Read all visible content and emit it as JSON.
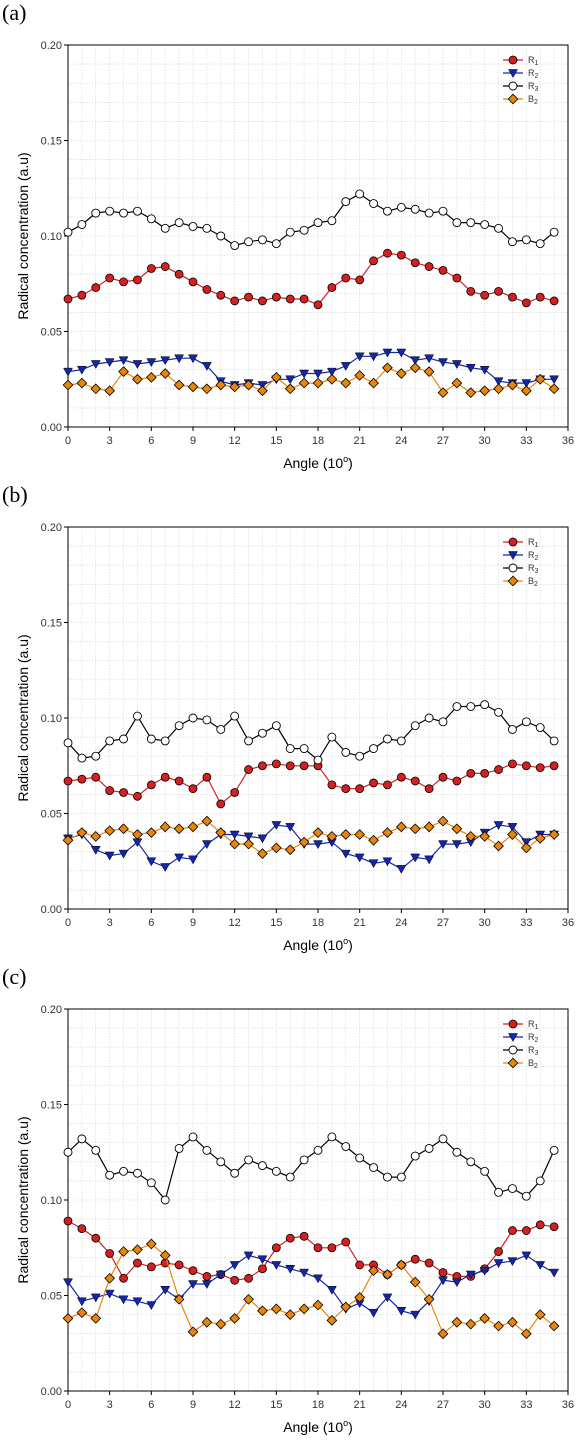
{
  "panels": [
    {
      "label": "(a)"
    },
    {
      "label": "(b)"
    },
    {
      "label": "(c)"
    }
  ],
  "chart_data": [
    {
      "type": "line",
      "xlabel": "Angle (10",
      "xlabel_sup": "o",
      "xlabel_suffix": ")",
      "ylabel": "Radical concentration (a.u)",
      "xlim": [
        0,
        36
      ],
      "ylim": [
        0,
        0.2
      ],
      "xticks": [
        0,
        3,
        6,
        9,
        12,
        15,
        18,
        21,
        24,
        27,
        30,
        33,
        36
      ],
      "yticks": [
        0.0,
        0.05,
        0.1,
        0.15,
        0.2
      ],
      "ytick_labels": [
        "0.00",
        "0.05",
        "0.10",
        "0.15",
        "0.20"
      ],
      "grid": true,
      "legend_position": "top-right",
      "x": [
        0,
        1,
        2,
        3,
        4,
        5,
        6,
        7,
        8,
        9,
        10,
        11,
        12,
        13,
        14,
        15,
        16,
        17,
        18,
        19,
        20,
        21,
        22,
        23,
        24,
        25,
        26,
        27,
        28,
        29,
        30,
        31,
        32,
        33,
        34,
        35
      ],
      "series": [
        {
          "name": "R",
          "sub": "1",
          "color": "#d42020",
          "marker": "circle",
          "values": [
            0.067,
            0.069,
            0.073,
            0.078,
            0.076,
            0.077,
            0.083,
            0.084,
            0.08,
            0.076,
            0.072,
            0.069,
            0.066,
            0.068,
            0.066,
            0.068,
            0.067,
            0.067,
            0.064,
            0.073,
            0.078,
            0.077,
            0.087,
            0.091,
            0.09,
            0.086,
            0.084,
            0.082,
            0.078,
            0.071,
            0.069,
            0.071,
            0.068,
            0.065,
            0.068,
            0.066
          ]
        },
        {
          "name": "R",
          "sub": "2",
          "color": "#1426a8",
          "marker": "triangle-down",
          "values": [
            0.029,
            0.03,
            0.033,
            0.034,
            0.035,
            0.033,
            0.034,
            0.035,
            0.036,
            0.036,
            0.032,
            0.024,
            0.022,
            0.023,
            0.022,
            0.025,
            0.025,
            0.028,
            0.028,
            0.029,
            0.032,
            0.037,
            0.037,
            0.039,
            0.039,
            0.035,
            0.036,
            0.034,
            0.033,
            0.031,
            0.03,
            0.024,
            0.023,
            0.023,
            0.025,
            0.025
          ]
        },
        {
          "name": "R",
          "sub": "3",
          "color": "#000000",
          "marker": "circle-open",
          "values": [
            0.102,
            0.106,
            0.112,
            0.113,
            0.112,
            0.113,
            0.109,
            0.104,
            0.107,
            0.105,
            0.104,
            0.1,
            0.095,
            0.097,
            0.098,
            0.096,
            0.102,
            0.103,
            0.107,
            0.108,
            0.118,
            0.122,
            0.117,
            0.113,
            0.115,
            0.114,
            0.112,
            0.113,
            0.107,
            0.107,
            0.106,
            0.104,
            0.097,
            0.098,
            0.096,
            0.102
          ]
        },
        {
          "name": "B",
          "sub": "2",
          "color": "#e8850c",
          "marker": "diamond",
          "values": [
            0.022,
            0.023,
            0.02,
            0.019,
            0.029,
            0.025,
            0.026,
            0.028,
            0.022,
            0.021,
            0.02,
            0.022,
            0.021,
            0.022,
            0.019,
            0.026,
            0.02,
            0.023,
            0.023,
            0.025,
            0.023,
            0.027,
            0.023,
            0.031,
            0.028,
            0.031,
            0.029,
            0.018,
            0.023,
            0.018,
            0.019,
            0.02,
            0.022,
            0.019,
            0.025,
            0.02
          ]
        }
      ]
    },
    {
      "type": "line",
      "xlabel": "Angle (10",
      "xlabel_sup": "o",
      "xlabel_suffix": ")",
      "ylabel": "Radical concentration (a.u)",
      "xlim": [
        0,
        36
      ],
      "ylim": [
        0,
        0.2
      ],
      "xticks": [
        0,
        3,
        6,
        9,
        12,
        15,
        18,
        21,
        24,
        27,
        30,
        33,
        36
      ],
      "yticks": [
        0.0,
        0.05,
        0.1,
        0.15,
        0.2
      ],
      "ytick_labels": [
        "0.00",
        "0.05",
        "0.10",
        "0.15",
        "0.20"
      ],
      "grid": true,
      "legend_position": "top-right",
      "x": [
        0,
        1,
        2,
        3,
        4,
        5,
        6,
        7,
        8,
        9,
        10,
        11,
        12,
        13,
        14,
        15,
        16,
        17,
        18,
        19,
        20,
        21,
        22,
        23,
        24,
        25,
        26,
        27,
        28,
        29,
        30,
        31,
        32,
        33,
        34,
        35
      ],
      "series": [
        {
          "name": "R",
          "sub": "1",
          "color": "#d42020",
          "marker": "circle",
          "values": [
            0.067,
            0.068,
            0.069,
            0.062,
            0.061,
            0.059,
            0.065,
            0.069,
            0.067,
            0.063,
            0.069,
            0.055,
            0.061,
            0.073,
            0.075,
            0.076,
            0.075,
            0.075,
            0.075,
            0.065,
            0.063,
            0.063,
            0.066,
            0.065,
            0.069,
            0.067,
            0.063,
            0.069,
            0.067,
            0.071,
            0.071,
            0.073,
            0.076,
            0.075,
            0.074,
            0.075
          ]
        },
        {
          "name": "R",
          "sub": "2",
          "color": "#1426a8",
          "marker": "triangle-down",
          "values": [
            0.037,
            0.039,
            0.031,
            0.028,
            0.029,
            0.035,
            0.025,
            0.022,
            0.027,
            0.026,
            0.034,
            0.039,
            0.039,
            0.038,
            0.037,
            0.044,
            0.043,
            0.034,
            0.034,
            0.035,
            0.029,
            0.027,
            0.024,
            0.025,
            0.021,
            0.027,
            0.026,
            0.034,
            0.034,
            0.035,
            0.04,
            0.044,
            0.043,
            0.035,
            0.039,
            0.039
          ]
        },
        {
          "name": "R",
          "sub": "3",
          "color": "#000000",
          "marker": "circle-open",
          "values": [
            0.087,
            0.079,
            0.08,
            0.088,
            0.089,
            0.101,
            0.089,
            0.088,
            0.096,
            0.1,
            0.099,
            0.094,
            0.101,
            0.088,
            0.092,
            0.096,
            0.084,
            0.084,
            0.078,
            0.09,
            0.082,
            0.08,
            0.084,
            0.089,
            0.088,
            0.096,
            0.1,
            0.098,
            0.106,
            0.106,
            0.107,
            0.103,
            0.094,
            0.098,
            0.095,
            0.088
          ]
        },
        {
          "name": "B",
          "sub": "2",
          "color": "#e8850c",
          "marker": "diamond",
          "values": [
            0.036,
            0.04,
            0.038,
            0.041,
            0.042,
            0.039,
            0.04,
            0.043,
            0.042,
            0.043,
            0.046,
            0.04,
            0.034,
            0.034,
            0.029,
            0.032,
            0.031,
            0.035,
            0.04,
            0.038,
            0.039,
            0.039,
            0.036,
            0.04,
            0.043,
            0.042,
            0.043,
            0.046,
            0.042,
            0.038,
            0.038,
            0.033,
            0.039,
            0.032,
            0.037,
            0.039
          ]
        }
      ]
    },
    {
      "type": "line",
      "xlabel": "Angle (10",
      "xlabel_sup": "o",
      "xlabel_suffix": ")",
      "ylabel": "Radical concentration (a.u)",
      "xlim": [
        0,
        36
      ],
      "ylim": [
        0,
        0.2
      ],
      "xticks": [
        0,
        3,
        6,
        9,
        12,
        15,
        18,
        21,
        24,
        27,
        30,
        33,
        36
      ],
      "yticks": [
        0.0,
        0.05,
        0.1,
        0.15,
        0.2
      ],
      "ytick_labels": [
        "0.00",
        "0.05",
        "0.10",
        "0.15",
        "0.20"
      ],
      "grid": true,
      "legend_position": "top-right",
      "x": [
        0,
        1,
        2,
        3,
        4,
        5,
        6,
        7,
        8,
        9,
        10,
        11,
        12,
        13,
        14,
        15,
        16,
        17,
        18,
        19,
        20,
        21,
        22,
        23,
        24,
        25,
        26,
        27,
        28,
        29,
        30,
        31,
        32,
        33,
        34,
        35
      ],
      "series": [
        {
          "name": "R",
          "sub": "1",
          "color": "#d42020",
          "marker": "circle",
          "values": [
            0.089,
            0.085,
            0.08,
            0.072,
            0.059,
            0.067,
            0.065,
            0.067,
            0.066,
            0.063,
            0.06,
            0.061,
            0.058,
            0.059,
            0.064,
            0.075,
            0.08,
            0.081,
            0.075,
            0.075,
            0.078,
            0.066,
            0.066,
            0.061,
            0.066,
            0.069,
            0.067,
            0.062,
            0.06,
            0.06,
            0.064,
            0.073,
            0.084,
            0.084,
            0.087,
            0.086
          ]
        },
        {
          "name": "R",
          "sub": "2",
          "color": "#1426a8",
          "marker": "triangle-down",
          "values": [
            0.057,
            0.047,
            0.049,
            0.051,
            0.048,
            0.047,
            0.045,
            0.053,
            0.048,
            0.056,
            0.056,
            0.061,
            0.066,
            0.071,
            0.069,
            0.066,
            0.064,
            0.062,
            0.059,
            0.053,
            0.043,
            0.046,
            0.041,
            0.049,
            0.042,
            0.04,
            0.047,
            0.058,
            0.057,
            0.061,
            0.063,
            0.067,
            0.068,
            0.071,
            0.066,
            0.062
          ]
        },
        {
          "name": "R",
          "sub": "3",
          "color": "#000000",
          "marker": "circle-open",
          "values": [
            0.125,
            0.132,
            0.126,
            0.113,
            0.115,
            0.114,
            0.109,
            0.1,
            0.127,
            0.133,
            0.126,
            0.12,
            0.114,
            0.121,
            0.118,
            0.115,
            0.112,
            0.121,
            0.126,
            0.133,
            0.128,
            0.122,
            0.117,
            0.112,
            0.112,
            0.123,
            0.127,
            0.132,
            0.125,
            0.12,
            0.115,
            0.104,
            0.106,
            0.102,
            0.11,
            0.126
          ]
        },
        {
          "name": "B",
          "sub": "2",
          "color": "#e8850c",
          "marker": "diamond",
          "values": [
            0.038,
            0.041,
            0.038,
            0.059,
            0.073,
            0.074,
            0.077,
            0.071,
            0.048,
            0.031,
            0.036,
            0.035,
            0.038,
            0.048,
            0.042,
            0.043,
            0.04,
            0.043,
            0.045,
            0.037,
            0.044,
            0.049,
            0.063,
            0.061,
            0.066,
            0.057,
            0.048,
            0.03,
            0.036,
            0.035,
            0.038,
            0.034,
            0.036,
            0.03,
            0.04,
            0.034
          ]
        }
      ]
    }
  ]
}
